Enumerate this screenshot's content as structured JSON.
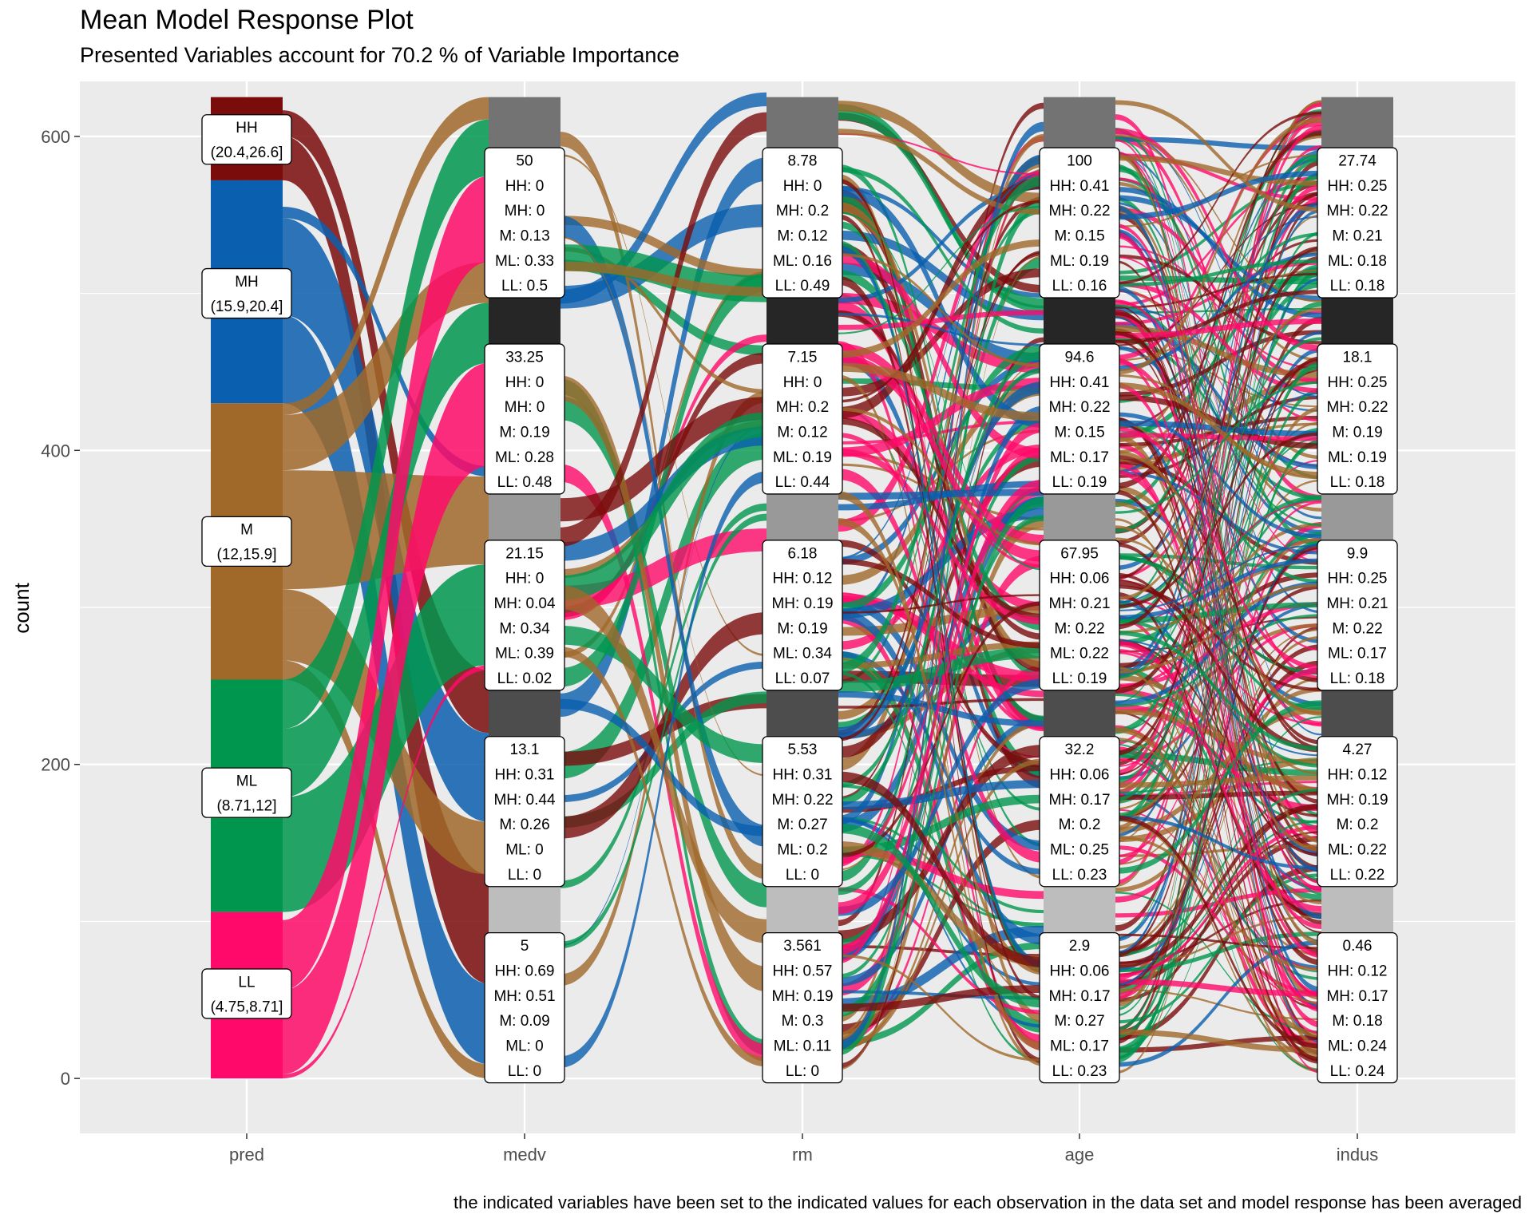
{
  "chart_data": {
    "type": "alluvial",
    "title": "Mean Model Response Plot",
    "subtitle": "Presented Variables account for 70.2 % of Variable Importance",
    "ylabel": "count",
    "xlabel": "",
    "caption": "the indicated variables have been set to the indicated values for each observation in the data set and model response has been averaged",
    "ylim": [
      -35,
      635
    ],
    "yticks": [
      0,
      200,
      400,
      600
    ],
    "axes": [
      "pred",
      "medv",
      "rm",
      "age",
      "indus"
    ],
    "grid": true,
    "pred_strata": [
      {
        "name": "HH",
        "range": "(20.4,26.6]",
        "from": 572,
        "to": 625,
        "color": "#7B0C0C"
      },
      {
        "name": "MH",
        "range": "(15.9,20.4]",
        "from": 430,
        "to": 572,
        "color": "#0A5FAE"
      },
      {
        "name": "M",
        "range": "(12,15.9]",
        "from": 254,
        "to": 430,
        "color": "#A0692A"
      },
      {
        "name": "ML",
        "range": "(8.71,12]",
        "from": 106,
        "to": 254,
        "color": "#00964D"
      },
      {
        "name": "LL",
        "range": "(4.75,8.71]",
        "from": 0,
        "to": 106,
        "color": "#FF0A6A"
      }
    ],
    "variable_strata": [
      {
        "axis": "medv",
        "values": [
          {
            "value": "50",
            "HH": "0",
            "MH": "0",
            "M": "0.13",
            "ML": "0.33",
            "LL": "0.5"
          },
          {
            "value": "33.25",
            "HH": "0",
            "MH": "0",
            "M": "0.19",
            "ML": "0.28",
            "LL": "0.48"
          },
          {
            "value": "21.15",
            "HH": "0",
            "MH": "0.04",
            "M": "0.34",
            "ML": "0.39",
            "LL": "0.02"
          },
          {
            "value": "13.1",
            "HH": "0.31",
            "MH": "0.44",
            "M": "0.26",
            "ML": "0",
            "LL": "0"
          },
          {
            "value": "5",
            "HH": "0.69",
            "MH": "0.51",
            "M": "0.09",
            "ML": "0",
            "LL": "0"
          }
        ]
      },
      {
        "axis": "rm",
        "values": [
          {
            "value": "8.78",
            "HH": "0",
            "MH": "0.2",
            "M": "0.12",
            "ML": "0.16",
            "LL": "0.49"
          },
          {
            "value": "7.15",
            "HH": "0",
            "MH": "0.2",
            "M": "0.12",
            "ML": "0.19",
            "LL": "0.44"
          },
          {
            "value": "6.18",
            "HH": "0.12",
            "MH": "0.19",
            "M": "0.19",
            "ML": "0.34",
            "LL": "0.07"
          },
          {
            "value": "5.53",
            "HH": "0.31",
            "MH": "0.22",
            "M": "0.27",
            "ML": "0.2",
            "LL": "0"
          },
          {
            "value": "3.561",
            "HH": "0.57",
            "MH": "0.19",
            "M": "0.3",
            "ML": "0.11",
            "LL": "0"
          }
        ]
      },
      {
        "axis": "age",
        "values": [
          {
            "value": "100",
            "HH": "0.41",
            "MH": "0.22",
            "M": "0.15",
            "ML": "0.19",
            "LL": "0.16"
          },
          {
            "value": "94.6",
            "HH": "0.41",
            "MH": "0.22",
            "M": "0.15",
            "ML": "0.17",
            "LL": "0.19"
          },
          {
            "value": "67.95",
            "HH": "0.06",
            "MH": "0.21",
            "M": "0.22",
            "ML": "0.22",
            "LL": "0.19"
          },
          {
            "value": "32.2",
            "HH": "0.06",
            "MH": "0.17",
            "M": "0.2",
            "ML": "0.25",
            "LL": "0.23"
          },
          {
            "value": "2.9",
            "HH": "0.06",
            "MH": "0.17",
            "M": "0.27",
            "ML": "0.17",
            "LL": "0.23"
          }
        ]
      },
      {
        "axis": "indus",
        "values": [
          {
            "value": "27.74",
            "HH": "0.25",
            "MH": "0.22",
            "M": "0.21",
            "ML": "0.18",
            "LL": "0.18"
          },
          {
            "value": "18.1",
            "HH": "0.25",
            "MH": "0.22",
            "M": "0.19",
            "ML": "0.19",
            "LL": "0.18"
          },
          {
            "value": "9.9",
            "HH": "0.25",
            "MH": "0.21",
            "M": "0.22",
            "ML": "0.17",
            "LL": "0.18"
          },
          {
            "value": "4.27",
            "HH": "0.12",
            "MH": "0.19",
            "M": "0.2",
            "ML": "0.22",
            "LL": "0.22"
          },
          {
            "value": "0.46",
            "HH": "0.12",
            "MH": "0.17",
            "M": "0.18",
            "ML": "0.24",
            "LL": "0.24"
          }
        ]
      }
    ],
    "strata_shades": [
      "#737373",
      "#262626",
      "#999999",
      "#4d4d4d",
      "#bdbdbd"
    ]
  }
}
